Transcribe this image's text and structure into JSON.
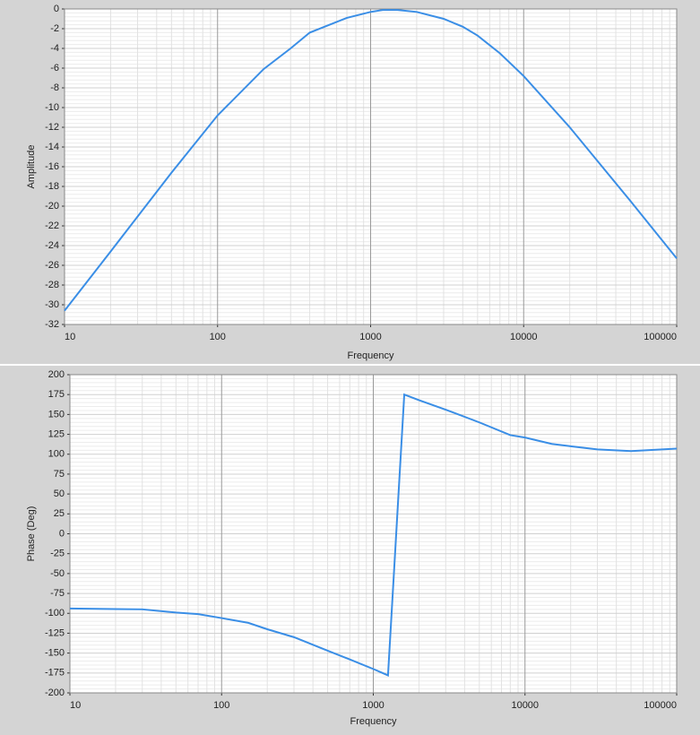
{
  "chart_data": [
    {
      "type": "line",
      "x_label": "Frequency",
      "y_label": "Amplitude",
      "log_x": true,
      "grid": true,
      "color": "#3a8ee6",
      "x": [
        10,
        20,
        50,
        100,
        200,
        300,
        400,
        500,
        700,
        1000,
        1200,
        1500,
        2000,
        3000,
        4000,
        5000,
        7000,
        10000,
        20000,
        50000,
        100000
      ],
      "values": [
        -30.6,
        -24.6,
        -16.6,
        -10.8,
        -6.1,
        -4.0,
        -2.4,
        -1.8,
        -0.9,
        -0.3,
        -0.1,
        -0.1,
        -0.3,
        -1.0,
        -1.8,
        -2.7,
        -4.5,
        -6.8,
        -12.0,
        -19.5,
        -25.3
      ],
      "xlim": [
        10,
        100000
      ],
      "xticks": [
        10,
        100,
        1000,
        10000,
        100000
      ],
      "ylim": [
        -32,
        0
      ],
      "yticks": [
        -32,
        -30,
        -28,
        -26,
        -24,
        -22,
        -20,
        -18,
        -16,
        -14,
        -12,
        -10,
        -8,
        -6,
        -4,
        -2,
        0
      ]
    },
    {
      "type": "line",
      "x_label": "Frequency",
      "y_label": "Phase (Deg)",
      "log_x": true,
      "grid": true,
      "color": "#3a8ee6",
      "x": [
        10,
        30,
        50,
        70,
        100,
        150,
        200,
        300,
        500,
        700,
        1000,
        1250,
        1600,
        2000,
        3000,
        5000,
        8000,
        10000,
        15000,
        20000,
        30000,
        50000,
        100000
      ],
      "values": [
        -94,
        -95,
        -99,
        -101,
        -106,
        -112,
        -120,
        -130,
        -147,
        -158,
        -170,
        -178,
        175,
        168,
        156,
        140,
        124,
        121,
        113,
        110,
        106,
        104,
        107
      ],
      "xlim": [
        10,
        100000
      ],
      "xticks": [
        10,
        100,
        1000,
        10000,
        100000
      ],
      "ylim": [
        -200,
        200
      ],
      "yticks": [
        -200,
        -175,
        -150,
        -125,
        -100,
        -75,
        -50,
        -25,
        0,
        25,
        50,
        75,
        100,
        125,
        150,
        175,
        200
      ]
    }
  ]
}
